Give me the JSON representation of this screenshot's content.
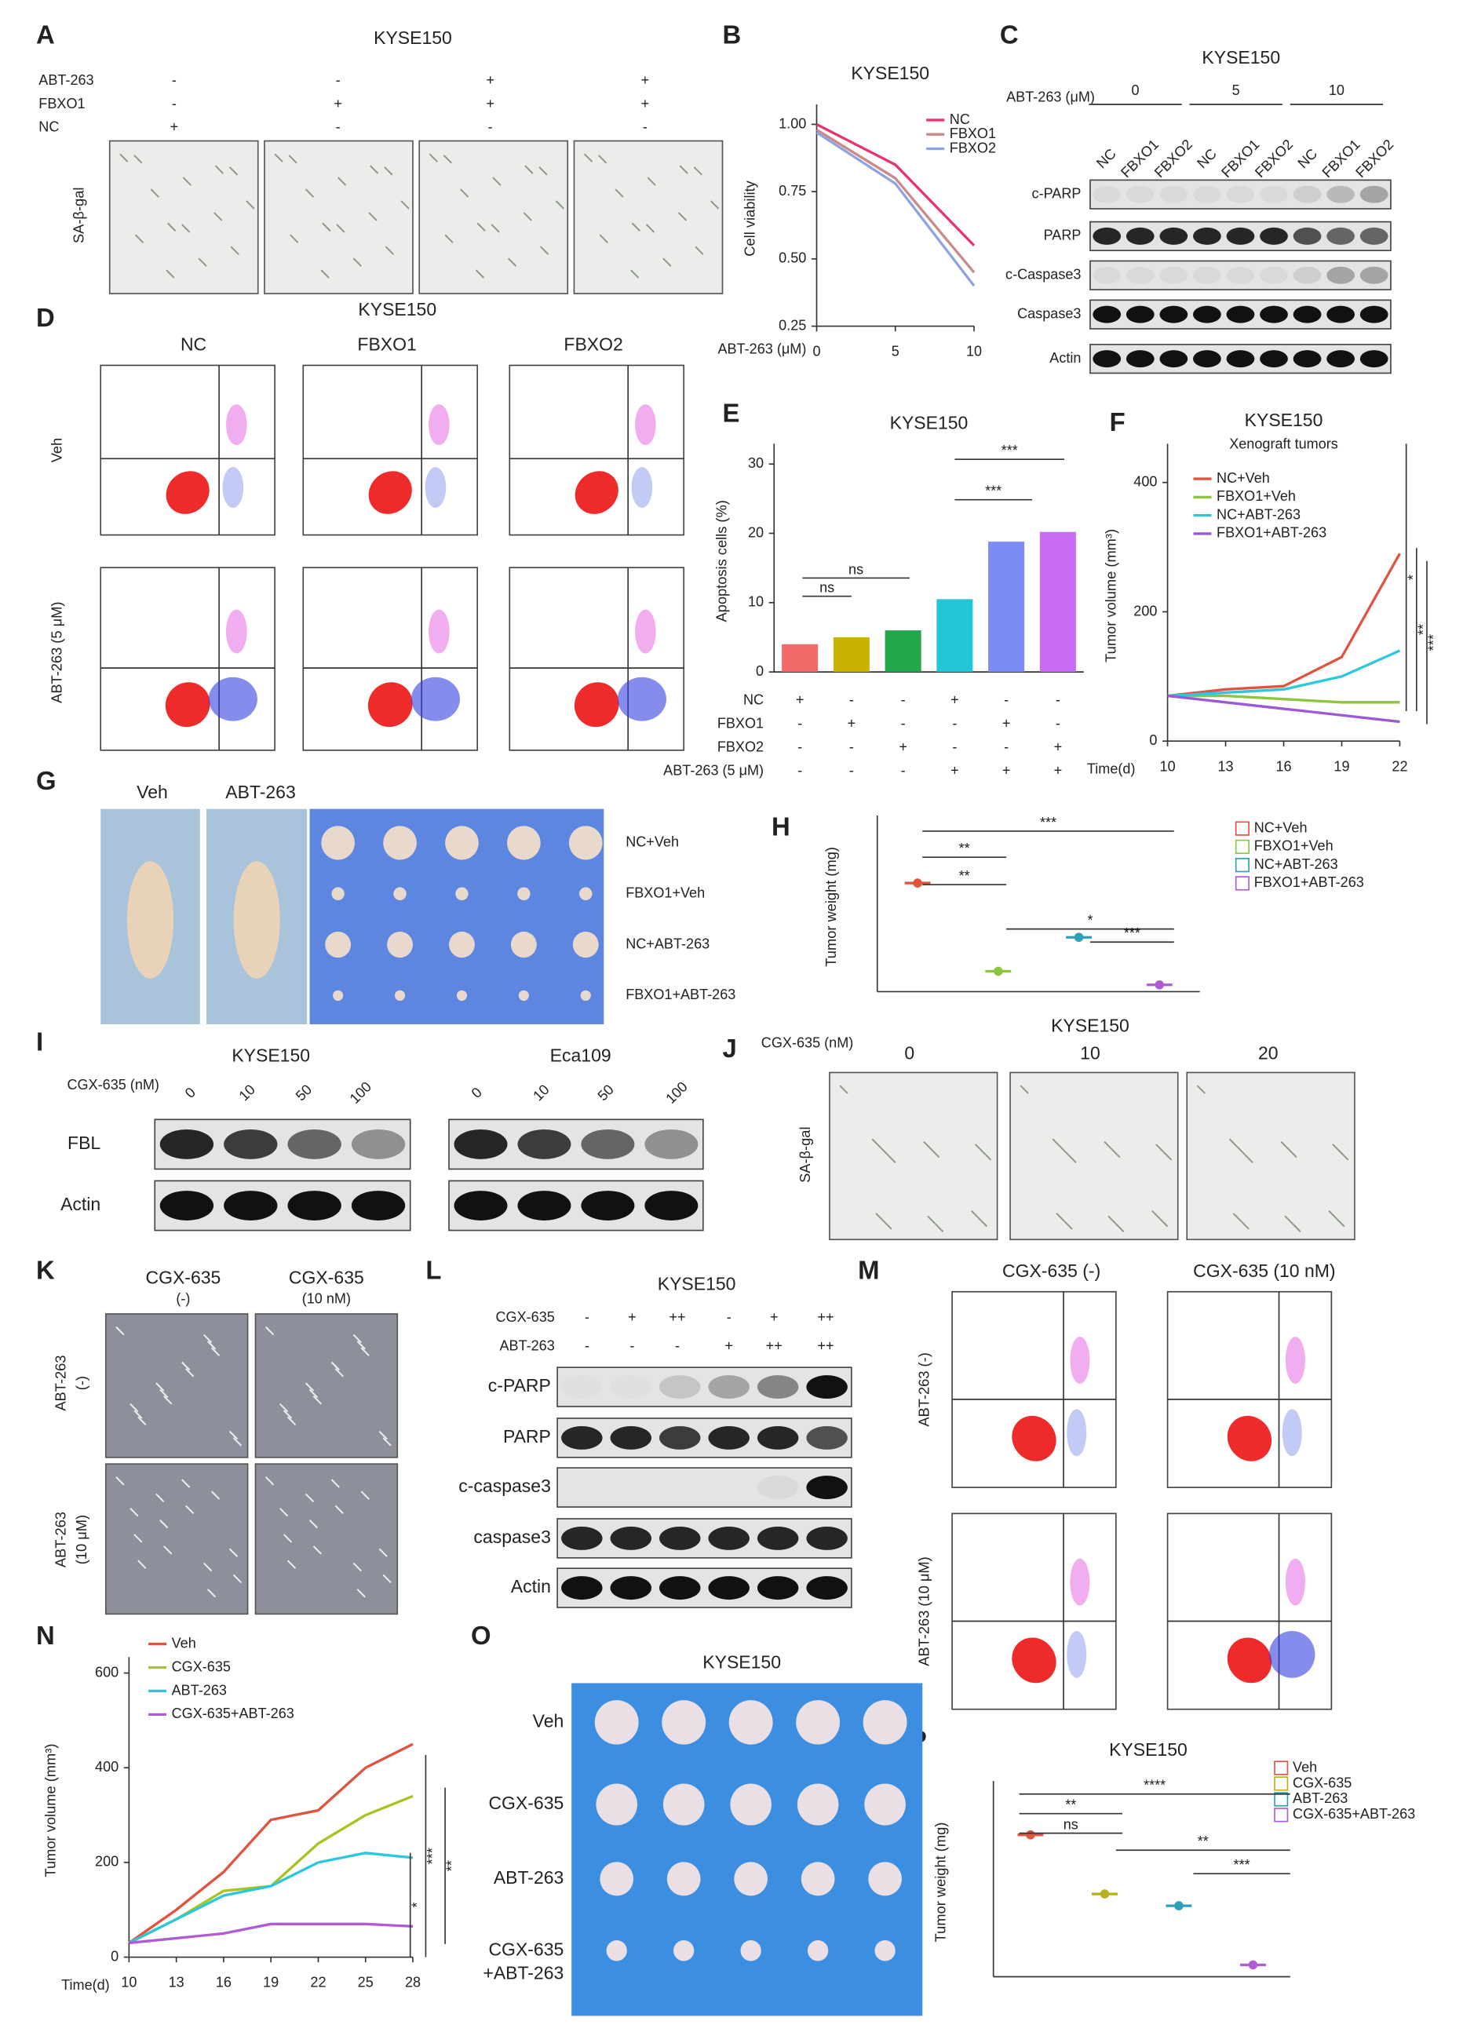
{
  "panel_labels": [
    "A",
    "B",
    "C",
    "D",
    "E",
    "F",
    "G",
    "H",
    "I",
    "J",
    "K",
    "L",
    "M",
    "N",
    "O",
    "P"
  ],
  "panels": {
    "A": {
      "title": "KYSE150",
      "rows": [
        {
          "name": "ABT-263",
          "signs": [
            "-",
            "-",
            "+",
            "+"
          ]
        },
        {
          "name": "FBXO1",
          "signs": [
            "-",
            "+",
            "+",
            "+"
          ]
        },
        {
          "name": "NC",
          "signs": [
            "+",
            "-",
            "-",
            "-"
          ]
        }
      ],
      "ylabel": "SA-β-gal"
    },
    "C": {
      "title": "KYSE150",
      "condition": "ABT-263 (μM)",
      "doses": [
        "0",
        "5",
        "10"
      ],
      "lanes": [
        "NC",
        "FBXO1",
        "FBXO2"
      ],
      "blots": [
        "c-PARP",
        "PARP",
        "c-Caspase3",
        "Caspase3",
        "Actin"
      ]
    },
    "D": {
      "title": "KYSE150",
      "columns": [
        "NC",
        "FBXO1",
        "FBXO2"
      ],
      "rows": [
        "Veh",
        "ABT-263 (5 μM)"
      ]
    },
    "G": {
      "columns": [
        "Veh",
        "ABT-263"
      ],
      "rows": [
        "NC+Veh",
        "FBXO1+Veh",
        "NC+ABT-263",
        "FBXO1+ABT-263"
      ]
    },
    "I": {
      "groups": [
        "KYSE150",
        "Eca109"
      ],
      "treatment": "CGX-635 (nM)",
      "doses": [
        "0",
        "10",
        "50",
        "100"
      ],
      "blots": [
        "FBL",
        "Actin"
      ]
    },
    "J": {
      "title": "KYSE150",
      "treatment": "CGX-635 (nM)",
      "doses": [
        "0",
        "10",
        "20"
      ],
      "ylabel": "SA-β-gal"
    },
    "K": {
      "columns": [
        [
          "CGX-635",
          "(-)"
        ],
        [
          "CGX-635",
          "(10 nM)"
        ]
      ],
      "rows": [
        [
          "ABT-263",
          "(-)"
        ],
        [
          "ABT-263",
          "(10 μM)"
        ]
      ]
    },
    "L": {
      "title": "KYSE150",
      "rows": [
        {
          "name": "CGX-635",
          "signs": [
            "-",
            "+",
            "++",
            "-",
            "+",
            "++"
          ]
        },
        {
          "name": "ABT-263",
          "signs": [
            "-",
            "-",
            "-",
            "+",
            "++",
            "++"
          ]
        }
      ],
      "blots": [
        "c-PARP",
        "PARP",
        "c-caspase3",
        "caspase3",
        "Actin"
      ]
    },
    "M": {
      "columns": [
        "CGX-635 (-)",
        "CGX-635 (10 nM)"
      ],
      "rows": [
        "ABT-263 (-)",
        "ABT-263 (10 μM)"
      ]
    },
    "O": {
      "title": "KYSE150",
      "rows": [
        [
          "Veh"
        ],
        [
          "CGX-635"
        ],
        [
          "ABT-263"
        ],
        [
          "CGX-635",
          "+ABT-263"
        ]
      ]
    }
  },
  "chart_data": [
    {
      "type": "line",
      "title": "KYSE150",
      "ylabel": "Cell viability",
      "xlabel": "ABT-263 (μM)",
      "x": [
        0,
        5,
        10
      ],
      "xlim": [
        0,
        10
      ],
      "xticks": [
        0,
        5,
        10
      ],
      "ylim": [
        0.25,
        1.05
      ],
      "yticks": [
        {
          "value": 0.25,
          "label": "0.25"
        },
        {
          "value": 0.5,
          "label": "0.50"
        },
        {
          "value": 0.75,
          "label": "0.75"
        },
        {
          "value": 1,
          "label": "1.00"
        }
      ],
      "series": [
        {
          "name": "NC",
          "color": "#e8336b",
          "values": [
            1.0,
            0.85,
            0.55
          ]
        },
        {
          "name": "FBXO1",
          "color": "#c98a8a",
          "values": [
            0.98,
            0.8,
            0.45
          ]
        },
        {
          "name": "FBXO2",
          "color": "#8fa3e0",
          "values": [
            0.97,
            0.78,
            0.4
          ]
        }
      ]
    },
    {
      "type": "bar",
      "title": "KYSE150",
      "ylabel": "Apoptosis cells (%)",
      "categories": [
        null,
        null,
        null,
        null,
        null,
        null
      ],
      "values": [
        4,
        5,
        6,
        10.5,
        18.8,
        20.2
      ],
      "colors": [
        "#f26b6b",
        "#c8b400",
        "#22a84a",
        "#22c6d6",
        "#7b8cf5",
        "#c96cf2"
      ],
      "ylim": [
        0,
        32
      ],
      "yticks": [
        0,
        10,
        20,
        30
      ],
      "conditions": [
        {
          "name": "NC",
          "signs": [
            "+",
            "-",
            "-",
            "+",
            "-",
            "-"
          ]
        },
        {
          "name": "FBXO1",
          "signs": [
            "-",
            "+",
            "-",
            "-",
            "+",
            "-"
          ]
        },
        {
          "name": "FBXO2",
          "signs": [
            "-",
            "-",
            "+",
            "-",
            "-",
            "+"
          ]
        },
        {
          "name": "ABT-263 (5 μM)",
          "signs": [
            "-",
            "-",
            "-",
            "+",
            "+",
            "+"
          ]
        }
      ],
      "annotations": [
        "ns",
        "ns",
        "***",
        "***"
      ]
    },
    {
      "type": "line",
      "title": "KYSE150",
      "subtitle": "Xenograft tumors",
      "ylabel": "Tumor volume (mm³)",
      "xlabel": "Time(d)",
      "x": [
        10,
        13,
        16,
        19,
        22
      ],
      "xlim": [
        10,
        22
      ],
      "xticks": [
        10,
        13,
        16,
        19,
        22
      ],
      "ylim": [
        0,
        450
      ],
      "yticks": [
        0,
        200,
        400
      ],
      "series": [
        {
          "name": "NC+Veh",
          "color": "#e0533f",
          "values": [
            70,
            80,
            85,
            130,
            290
          ]
        },
        {
          "name": "FBXO1+Veh",
          "color": "#8cc63f",
          "values": [
            70,
            70,
            65,
            60,
            60
          ]
        },
        {
          "name": "NC+ABT-263",
          "color": "#2cc6dd",
          "values": [
            70,
            75,
            80,
            100,
            140
          ]
        },
        {
          "name": "FBXO1+ABT-263",
          "color": "#9b59d6",
          "values": [
            70,
            60,
            50,
            40,
            30
          ]
        }
      ],
      "annotations": [
        "*",
        "**",
        "***"
      ]
    },
    {
      "type": "strip",
      "ylabel": "Tumor weight (mg)",
      "categories": [
        "NC+Veh",
        "FBXO1+Veh",
        "NC+ABT-263",
        "FBXO1+ABT-263"
      ],
      "colors": [
        "#e0533f",
        "#8cc63f",
        "#2ca0b8",
        "#b05bd6"
      ],
      "values": [
        0.16,
        0.03,
        0.08,
        0.01
      ],
      "ylim": [
        0,
        0.25
      ],
      "annotations": [
        "***",
        "**",
        "**",
        "*",
        "***"
      ]
    },
    {
      "type": "line",
      "ylabel": "Tumor volume (mm³)",
      "xlabel": "Time(d)",
      "x": [
        10,
        13,
        16,
        19,
        22,
        25,
        28
      ],
      "xlim": [
        10,
        28
      ],
      "xticks": [
        10,
        13,
        16,
        19,
        22,
        25,
        28
      ],
      "ylim": [
        0,
        620
      ],
      "yticks": [
        0,
        200,
        400,
        600
      ],
      "series": [
        {
          "name": "Veh",
          "color": "#e0533f",
          "values": [
            30,
            100,
            180,
            290,
            310,
            400,
            450
          ]
        },
        {
          "name": "CGX-635",
          "color": "#a8c21f",
          "values": [
            30,
            80,
            140,
            150,
            240,
            300,
            340
          ]
        },
        {
          "name": "ABT-263",
          "color": "#2cc6dd",
          "values": [
            30,
            80,
            130,
            150,
            200,
            220,
            210
          ]
        },
        {
          "name": "CGX-635+ABT-263",
          "color": "#b05bd6",
          "values": [
            30,
            40,
            50,
            70,
            70,
            70,
            65
          ]
        }
      ],
      "annotations": [
        "***",
        "**",
        "*"
      ]
    },
    {
      "type": "strip",
      "title": "KYSE150",
      "ylabel": "Tumor weight (mg)",
      "categories": [
        "Veh",
        "CGX-635",
        "ABT-263",
        "CGX-635+ABT-263"
      ],
      "colors": [
        "#e0533f",
        "#b8b020",
        "#2ca0b8",
        "#b05bd6"
      ],
      "values": [
        0.6,
        0.35,
        0.3,
        0.05
      ],
      "ylim": [
        0,
        0.8
      ],
      "annotations": [
        "****",
        "**",
        "ns",
        "**",
        "***"
      ]
    }
  ]
}
